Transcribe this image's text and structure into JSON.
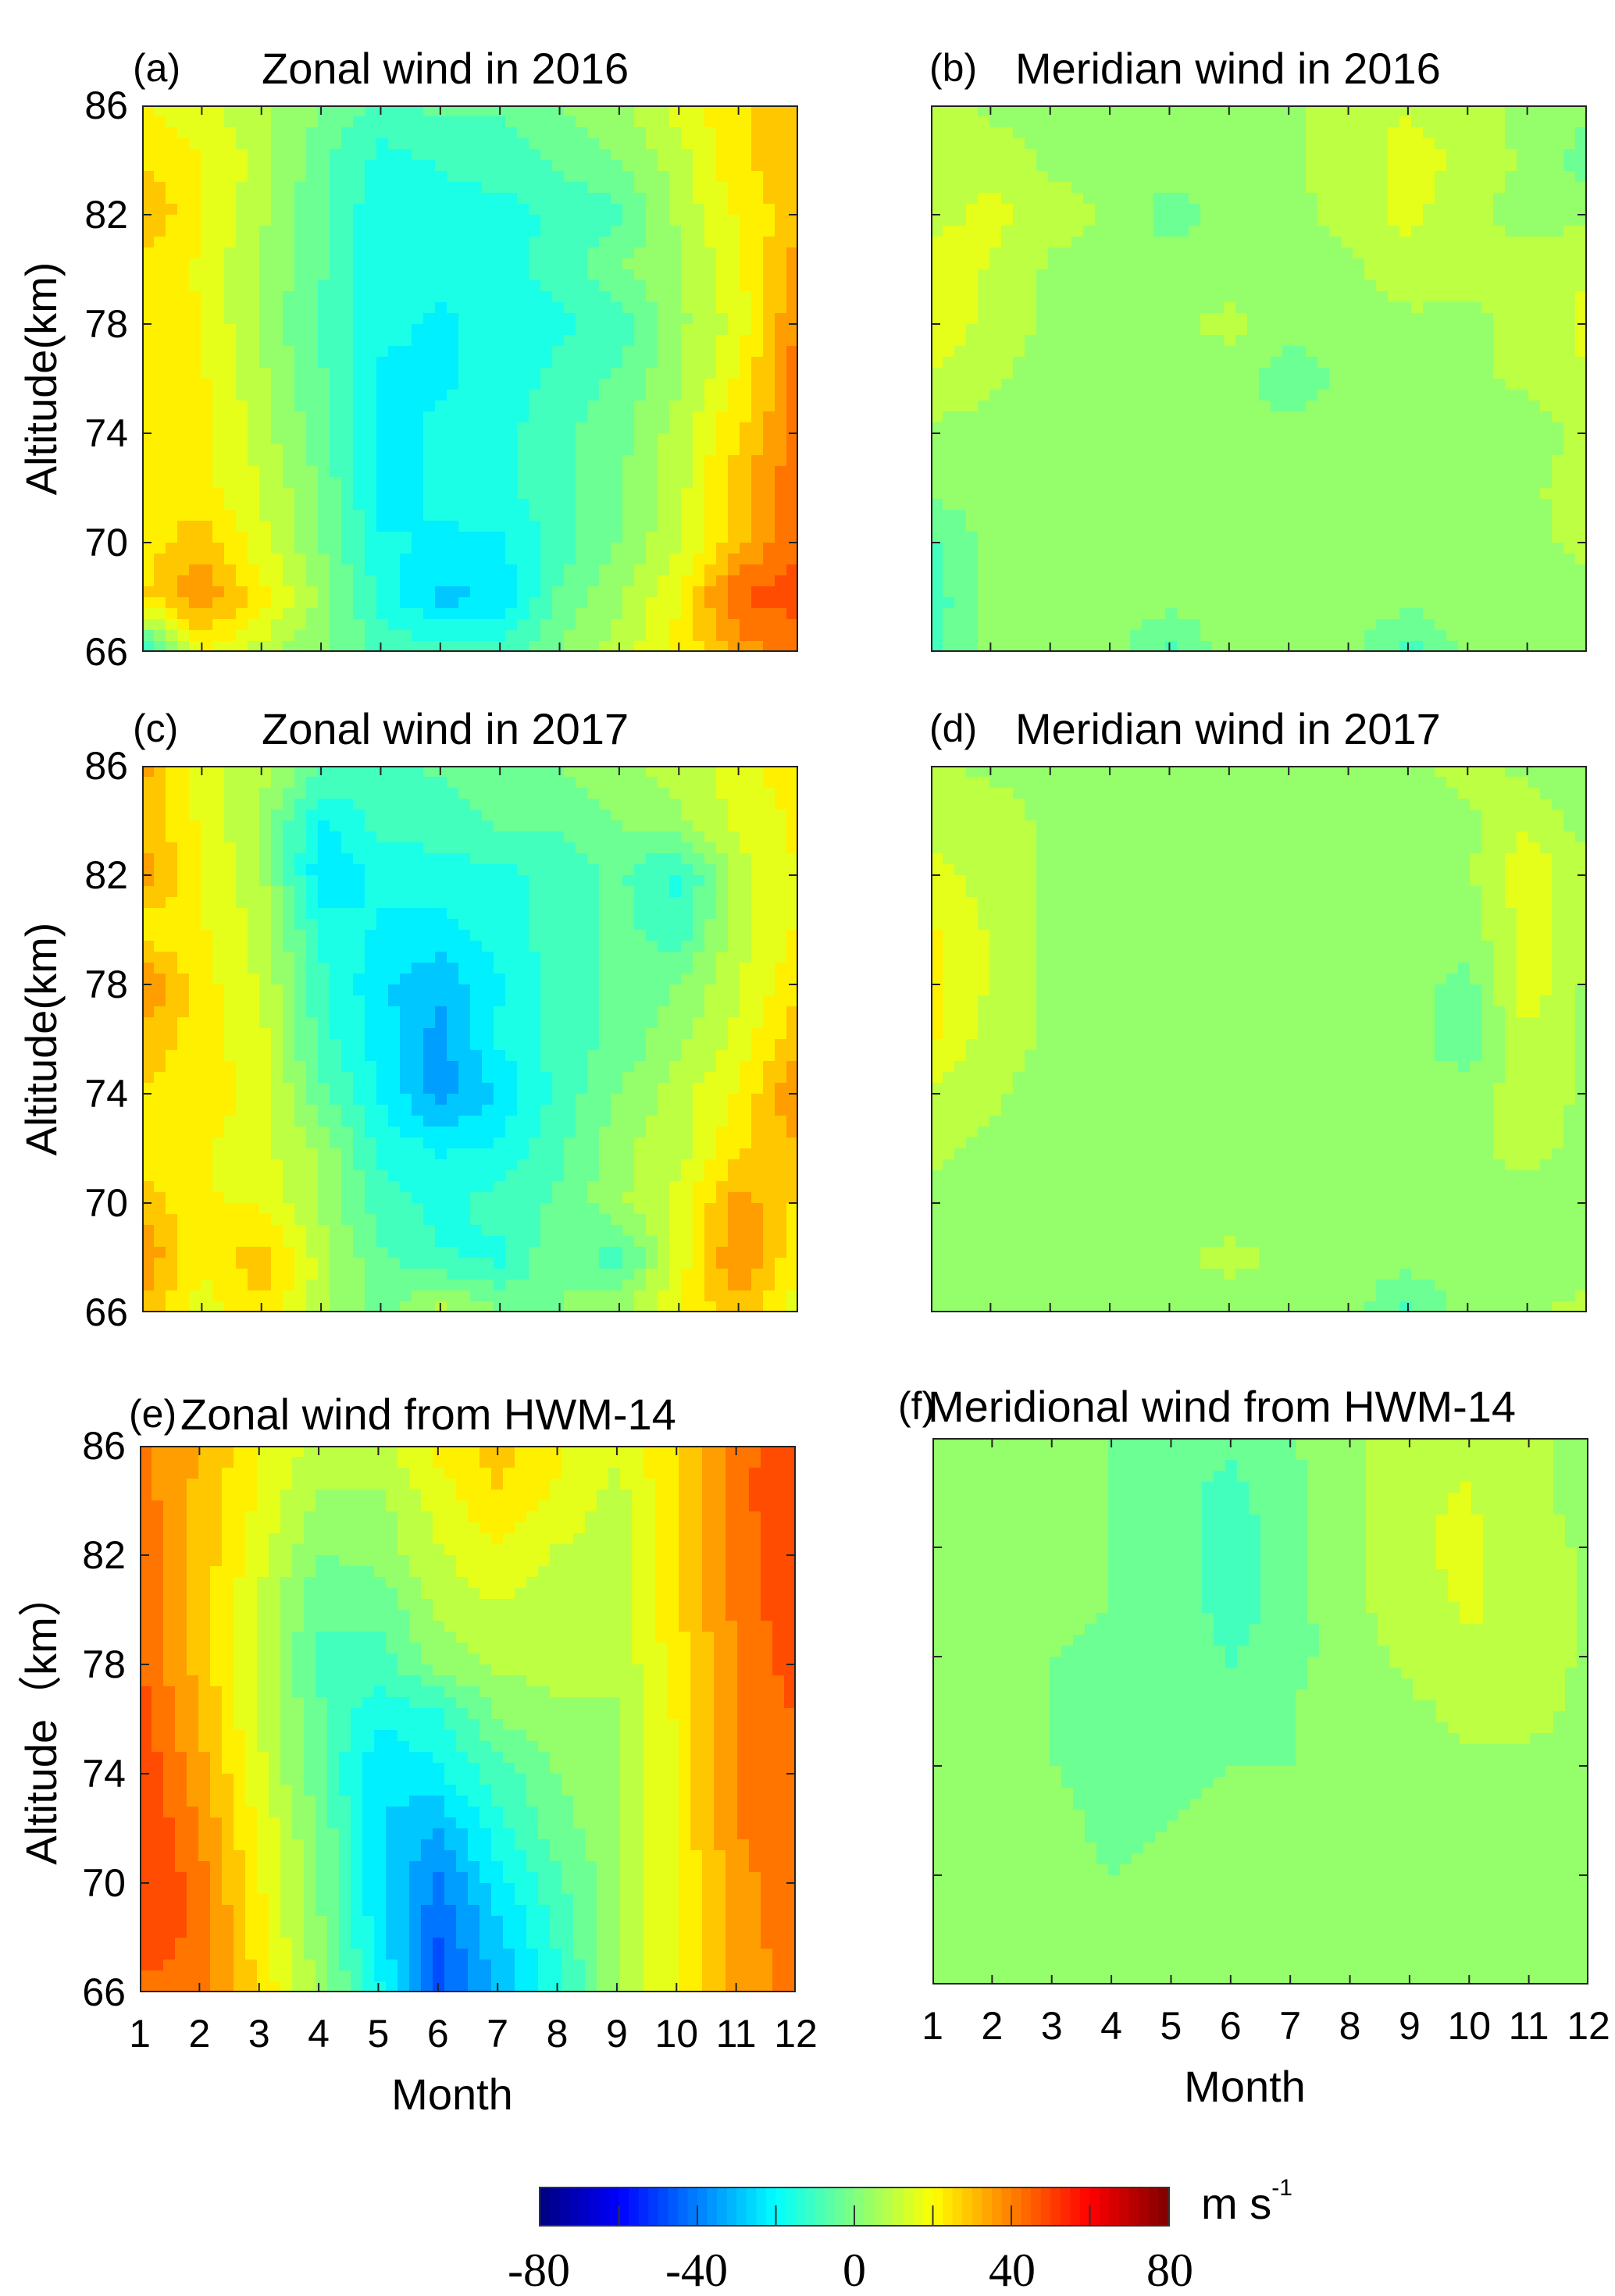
{
  "chart_data": [
    {
      "id": "a",
      "type": "heatmap",
      "letter": "(a)",
      "title": "Zonal  wind  in 2016",
      "ylabel": "Altitude(km)",
      "xlabel": "",
      "show_y_ticklabels": true,
      "show_x_ticklabels": false,
      "x": [
        1,
        2,
        3,
        4,
        5,
        6,
        7,
        8,
        9,
        10,
        11,
        12
      ],
      "y": [
        86,
        84,
        82,
        80,
        78,
        76,
        74,
        72,
        70,
        68,
        66
      ],
      "values": [
        [
          20,
          15,
          8,
          0,
          -8,
          -5,
          -5,
          0,
          5,
          15,
          25,
          30
        ],
        [
          25,
          20,
          10,
          -5,
          -15,
          -12,
          -10,
          -5,
          0,
          10,
          25,
          30
        ],
        [
          32,
          20,
          8,
          -5,
          -18,
          -15,
          -15,
          -12,
          -8,
          8,
          20,
          30
        ],
        [
          22,
          18,
          5,
          -5,
          -18,
          -18,
          -15,
          -10,
          0,
          5,
          18,
          35
        ],
        [
          20,
          20,
          5,
          -8,
          -18,
          -20,
          -18,
          -15,
          -10,
          5,
          15,
          40
        ],
        [
          22,
          20,
          8,
          -5,
          -20,
          -20,
          -18,
          -10,
          -5,
          5,
          20,
          42
        ],
        [
          22,
          22,
          10,
          -5,
          -22,
          -18,
          -15,
          -8,
          -3,
          10,
          25,
          40
        ],
        [
          20,
          22,
          12,
          0,
          -22,
          -18,
          -15,
          -8,
          0,
          10,
          30,
          45
        ],
        [
          22,
          30,
          15,
          0,
          -18,
          -20,
          -20,
          -10,
          0,
          12,
          30,
          45
        ],
        [
          25,
          38,
          22,
          5,
          -15,
          -28,
          -25,
          -5,
          5,
          20,
          45,
          48
        ],
        [
          -15,
          20,
          10,
          0,
          -8,
          -10,
          -10,
          0,
          10,
          20,
          35,
          40
        ]
      ]
    },
    {
      "id": "b",
      "type": "heatmap",
      "letter": "(b)",
      "title": "Meridian  wind in 2016",
      "ylabel": "",
      "xlabel": "",
      "show_y_ticklabels": false,
      "show_x_ticklabels": false,
      "x": [
        1,
        2,
        3,
        4,
        5,
        6,
        7,
        8,
        9,
        10,
        11,
        12
      ],
      "y": [
        86,
        84,
        82,
        80,
        78,
        76,
        74,
        72,
        70,
        68,
        66
      ],
      "values": [
        [
          10,
          5,
          5,
          3,
          3,
          5,
          5,
          12,
          12,
          10,
          3,
          2
        ],
        [
          12,
          10,
          5,
          3,
          3,
          5,
          5,
          10,
          15,
          12,
          5,
          -3
        ],
        [
          10,
          15,
          10,
          5,
          -3,
          3,
          5,
          8,
          15,
          8,
          3,
          5
        ],
        [
          18,
          12,
          5,
          3,
          3,
          3,
          5,
          5,
          10,
          8,
          10,
          12
        ],
        [
          20,
          10,
          5,
          2,
          5,
          8,
          3,
          3,
          5,
          5,
          8,
          15
        ],
        [
          12,
          8,
          3,
          3,
          5,
          3,
          -5,
          3,
          3,
          5,
          8,
          12
        ],
        [
          5,
          3,
          3,
          3,
          3,
          3,
          3,
          3,
          3,
          3,
          3,
          8
        ],
        [
          3,
          2,
          3,
          5,
          3,
          3,
          3,
          3,
          3,
          3,
          5,
          10
        ],
        [
          -8,
          3,
          5,
          3,
          3,
          3,
          5,
          3,
          3,
          3,
          5,
          8
        ],
        [
          -10,
          2,
          5,
          3,
          3,
          3,
          5,
          3,
          3,
          3,
          3,
          5
        ],
        [
          -10,
          3,
          5,
          3,
          -8,
          3,
          3,
          3,
          -10,
          3,
          3,
          3
        ]
      ]
    },
    {
      "id": "c",
      "type": "heatmap",
      "letter": "(c)",
      "title": "Zonal  wind  in 2017",
      "ylabel": "Altitude(km)",
      "xlabel": "",
      "show_y_ticklabels": true,
      "show_x_ticklabels": false,
      "x": [
        1,
        2,
        3,
        4,
        5,
        6,
        7,
        8,
        9,
        10,
        11,
        12
      ],
      "y": [
        86,
        84,
        82,
        80,
        78,
        76,
        74,
        72,
        70,
        68,
        66
      ],
      "values": [
        [
          35,
          15,
          10,
          -5,
          -10,
          -5,
          0,
          0,
          5,
          10,
          15,
          25
        ],
        [
          30,
          18,
          5,
          -20,
          -10,
          -10,
          -5,
          -5,
          0,
          5,
          15,
          20
        ],
        [
          35,
          20,
          8,
          -25,
          -18,
          -15,
          -15,
          -10,
          -5,
          -15,
          10,
          20
        ],
        [
          22,
          20,
          10,
          -15,
          -20,
          -22,
          -15,
          -10,
          -5,
          -10,
          10,
          20
        ],
        [
          40,
          22,
          12,
          -10,
          -25,
          -30,
          -20,
          -10,
          -5,
          0,
          12,
          25
        ],
        [
          30,
          22,
          15,
          -10,
          -22,
          -35,
          -18,
          -10,
          -5,
          5,
          15,
          30
        ],
        [
          25,
          22,
          18,
          -5,
          -20,
          -35,
          -25,
          -10,
          0,
          10,
          20,
          40
        ],
        [
          22,
          20,
          15,
          5,
          -15,
          -20,
          -18,
          -8,
          5,
          10,
          25,
          30
        ],
        [
          30,
          20,
          18,
          5,
          -10,
          -15,
          -10,
          -5,
          5,
          15,
          35,
          25
        ],
        [
          38,
          20,
          30,
          10,
          -5,
          -12,
          -15,
          0,
          -10,
          15,
          40,
          20
        ],
        [
          30,
          15,
          25,
          10,
          -5,
          10,
          0,
          0,
          5,
          20,
          30,
          15
        ]
      ]
    },
    {
      "id": "d",
      "type": "heatmap",
      "letter": "(d)",
      "title": "Meridian  wind in 2017",
      "ylabel": "",
      "xlabel": "",
      "show_y_ticklabels": false,
      "show_x_ticklabels": false,
      "x": [
        1,
        2,
        3,
        4,
        5,
        6,
        7,
        8,
        9,
        10,
        11,
        12
      ],
      "y": [
        86,
        84,
        82,
        80,
        78,
        76,
        74,
        72,
        70,
        68,
        66
      ],
      "values": [
        [
          8,
          5,
          3,
          3,
          3,
          0,
          3,
          3,
          5,
          8,
          5,
          0
        ],
        [
          10,
          10,
          5,
          3,
          2,
          3,
          3,
          5,
          5,
          5,
          12,
          3
        ],
        [
          15,
          10,
          5,
          3,
          3,
          3,
          3,
          3,
          5,
          5,
          18,
          8
        ],
        [
          20,
          12,
          5,
          3,
          3,
          3,
          0,
          3,
          5,
          3,
          15,
          8
        ],
        [
          22,
          12,
          5,
          3,
          3,
          3,
          3,
          3,
          3,
          -3,
          18,
          5
        ],
        [
          20,
          10,
          5,
          3,
          3,
          3,
          3,
          3,
          3,
          -5,
          12,
          5
        ],
        [
          12,
          8,
          3,
          3,
          3,
          3,
          3,
          3,
          3,
          3,
          10,
          5
        ],
        [
          8,
          5,
          3,
          3,
          3,
          3,
          3,
          3,
          3,
          5,
          8,
          5
        ],
        [
          5,
          3,
          3,
          3,
          3,
          3,
          3,
          3,
          3,
          5,
          5,
          3
        ],
        [
          3,
          3,
          3,
          3,
          5,
          8,
          5,
          3,
          3,
          3,
          3,
          0
        ],
        [
          5,
          3,
          3,
          3,
          3,
          3,
          3,
          3,
          -8,
          3,
          5,
          10
        ]
      ]
    },
    {
      "id": "e",
      "type": "heatmap",
      "letter": "(e)",
      "title": "Zonal  wind from HWM-14",
      "ylabel": "Altitude（km）",
      "xlabel": "Month",
      "show_y_ticklabels": true,
      "show_x_ticklabels": true,
      "x": [
        1,
        2,
        3,
        4,
        5,
        6,
        7,
        8,
        9,
        10,
        11,
        12
      ],
      "y": [
        86,
        84,
        82,
        80,
        78,
        76,
        74,
        72,
        70,
        68,
        66
      ],
      "values": [
        [
          40,
          32,
          20,
          10,
          10,
          22,
          28,
          20,
          15,
          25,
          42,
          50
        ],
        [
          42,
          30,
          18,
          5,
          5,
          15,
          25,
          18,
          10,
          25,
          42,
          52
        ],
        [
          45,
          30,
          15,
          0,
          2,
          12,
          18,
          12,
          8,
          25,
          40,
          52
        ],
        [
          45,
          30,
          12,
          -5,
          -5,
          8,
          12,
          10,
          8,
          25,
          40,
          50
        ],
        [
          45,
          30,
          12,
          -8,
          -10,
          2,
          8,
          8,
          8,
          22,
          38,
          48
        ],
        [
          48,
          32,
          12,
          -5,
          -18,
          -15,
          0,
          5,
          5,
          20,
          38,
          45
        ],
        [
          50,
          35,
          15,
          -5,
          -25,
          -20,
          -10,
          0,
          5,
          20,
          38,
          45
        ],
        [
          52,
          38,
          18,
          0,
          -25,
          -32,
          -15,
          -3,
          5,
          20,
          38,
          45
        ],
        [
          52,
          42,
          20,
          0,
          -25,
          -40,
          -22,
          -8,
          5,
          20,
          35,
          45
        ],
        [
          52,
          42,
          22,
          2,
          -22,
          -45,
          -28,
          -12,
          5,
          20,
          35,
          42
        ],
        [
          40,
          42,
          25,
          5,
          -18,
          -45,
          -30,
          -15,
          5,
          20,
          35,
          40
        ]
      ]
    },
    {
      "id": "f",
      "type": "heatmap",
      "letter": "(f)",
      "title": "Meridional  wind from HWM-14",
      "ylabel": "",
      "xlabel": "Month",
      "show_y_ticklabels": false,
      "show_x_ticklabels": true,
      "x": [
        1,
        2,
        3,
        4,
        5,
        6,
        7,
        8,
        9,
        10,
        11,
        12
      ],
      "y": [
        86,
        84,
        82,
        80,
        78,
        76,
        74,
        72,
        70,
        68,
        66
      ],
      "values": [
        [
          5,
          3,
          2,
          0,
          -3,
          -5,
          0,
          5,
          12,
          12,
          8,
          3
        ],
        [
          5,
          3,
          2,
          0,
          -5,
          -8,
          -3,
          5,
          12,
          13,
          8,
          3
        ],
        [
          5,
          5,
          3,
          0,
          -3,
          -10,
          -3,
          5,
          12,
          14,
          10,
          5
        ],
        [
          5,
          5,
          3,
          0,
          -2,
          -10,
          -3,
          5,
          10,
          14,
          10,
          5
        ],
        [
          5,
          3,
          0,
          -2,
          -2,
          -7,
          -2,
          3,
          8,
          12,
          10,
          5
        ],
        [
          5,
          3,
          0,
          -3,
          -3,
          -3,
          0,
          3,
          5,
          8,
          8,
          5
        ],
        [
          5,
          3,
          0,
          -3,
          -3,
          0,
          0,
          3,
          5,
          5,
          5,
          5
        ],
        [
          5,
          3,
          2,
          -2,
          0,
          2,
          2,
          3,
          3,
          3,
          3,
          5
        ],
        [
          5,
          3,
          3,
          0,
          2,
          3,
          3,
          3,
          3,
          3,
          3,
          3
        ],
        [
          5,
          5,
          5,
          3,
          3,
          3,
          3,
          3,
          3,
          3,
          3,
          3
        ],
        [
          5,
          5,
          5,
          3,
          3,
          5,
          3,
          3,
          3,
          3,
          3,
          3
        ]
      ]
    }
  ],
  "axes": {
    "x_ticks": [
      "1",
      "2",
      "3",
      "4",
      "5",
      "6",
      "7",
      "8",
      "9",
      "10",
      "11",
      "12"
    ],
    "y_ticks": [
      "86",
      "82",
      "78",
      "74",
      "70",
      "66"
    ],
    "xlim": [
      1,
      12
    ],
    "ylim": [
      66,
      86
    ]
  },
  "colorbar": {
    "colormap": "jet",
    "range": [
      -80,
      80
    ],
    "tick_labels": [
      "-80",
      "-40",
      "0",
      "40",
      "80"
    ],
    "unit": "m s",
    "unit_exp": "-1"
  }
}
